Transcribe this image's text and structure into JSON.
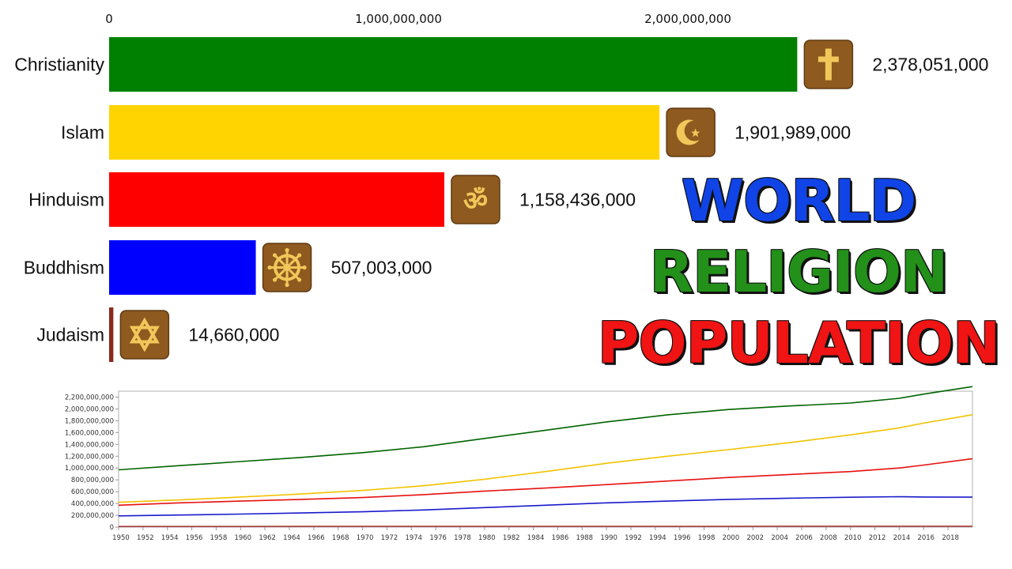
{
  "title": {
    "line1": "WORLD",
    "line2": "RELIGION",
    "line3": "POPULATION",
    "colors": [
      "#1044e6",
      "#23901a",
      "#f01414"
    ]
  },
  "chart_data": [
    {
      "type": "bar",
      "orientation": "horizontal",
      "xlim": [
        0,
        2400000000
      ],
      "x_ticks": [
        "0",
        "1,000,000,000",
        "2,000,000,000"
      ],
      "x_tick_values": [
        0,
        1000000000,
        2000000000
      ],
      "categories": [
        "Christianity",
        "Islam",
        "Hinduism",
        "Buddhism",
        "Judaism"
      ],
      "values": [
        2378051000,
        1901989000,
        1158436000,
        507003000,
        14660000
      ],
      "value_labels": [
        "2,378,051,000",
        "1,901,989,000",
        "1,158,436,000",
        "507,003,000",
        "14,660,000"
      ],
      "colors": [
        "#008000",
        "#ffd400",
        "#ff0000",
        "#0000ff",
        "#8b2a1a"
      ],
      "icons": [
        "cross-icon",
        "crescent-star-icon",
        "om-icon",
        "dharma-wheel-icon",
        "star-of-david-icon"
      ]
    },
    {
      "type": "line",
      "x": [
        1950,
        1955,
        1960,
        1965,
        1970,
        1975,
        1980,
        1985,
        1990,
        1995,
        2000,
        2005,
        2010,
        2014,
        2016,
        2020
      ],
      "x_ticks": [
        "1950",
        "1952",
        "1954",
        "1956",
        "1958",
        "1960",
        "1962",
        "1964",
        "1966",
        "1968",
        "1970",
        "1972",
        "1974",
        "1976",
        "1978",
        "1980",
        "1982",
        "1984",
        "1986",
        "1988",
        "1990",
        "1992",
        "1994",
        "1996",
        "1998",
        "2000",
        "2002",
        "2004",
        "2006",
        "2008",
        "2010",
        "2012",
        "2014",
        "2016",
        "2018"
      ],
      "ylim": [
        0,
        2300000000
      ],
      "y_ticks": [
        "0",
        "200,000,000",
        "400,000,000",
        "600,000,000",
        "800,000,000",
        "1,000,000,000",
        "1,200,000,000",
        "1,400,000,000",
        "1,600,000,000",
        "1,800,000,000",
        "2,000,000,000",
        "2,200,000,000"
      ],
      "grid": false,
      "series": [
        {
          "color": "#006400",
          "values": [
            970000000,
            1040000000,
            1110000000,
            1180000000,
            1260000000,
            1360000000,
            1500000000,
            1640000000,
            1780000000,
            1900000000,
            1990000000,
            2050000000,
            2100000000,
            2180000000,
            2250000000,
            2378051000
          ]
        },
        {
          "color": "#f2c200",
          "values": [
            420000000,
            460000000,
            510000000,
            560000000,
            620000000,
            700000000,
            810000000,
            940000000,
            1080000000,
            1200000000,
            1310000000,
            1430000000,
            1560000000,
            1680000000,
            1760000000,
            1901989000
          ]
        },
        {
          "color": "#e81010",
          "values": [
            370000000,
            410000000,
            440000000,
            470000000,
            500000000,
            550000000,
            610000000,
            660000000,
            720000000,
            780000000,
            840000000,
            890000000,
            940000000,
            1000000000,
            1050000000,
            1158436000
          ]
        },
        {
          "color": "#1a1acc",
          "values": [
            190000000,
            205000000,
            220000000,
            240000000,
            260000000,
            290000000,
            330000000,
            370000000,
            410000000,
            440000000,
            470000000,
            490000000,
            505000000,
            515000000,
            510000000,
            507003000
          ]
        },
        {
          "color": "#a01010",
          "values": [
            12000000,
            12000000,
            12500000,
            13000000,
            13000000,
            13200000,
            13300000,
            13500000,
            13500000,
            13800000,
            14000000,
            14200000,
            14300000,
            14500000,
            14600000,
            14660000
          ]
        }
      ]
    }
  ]
}
